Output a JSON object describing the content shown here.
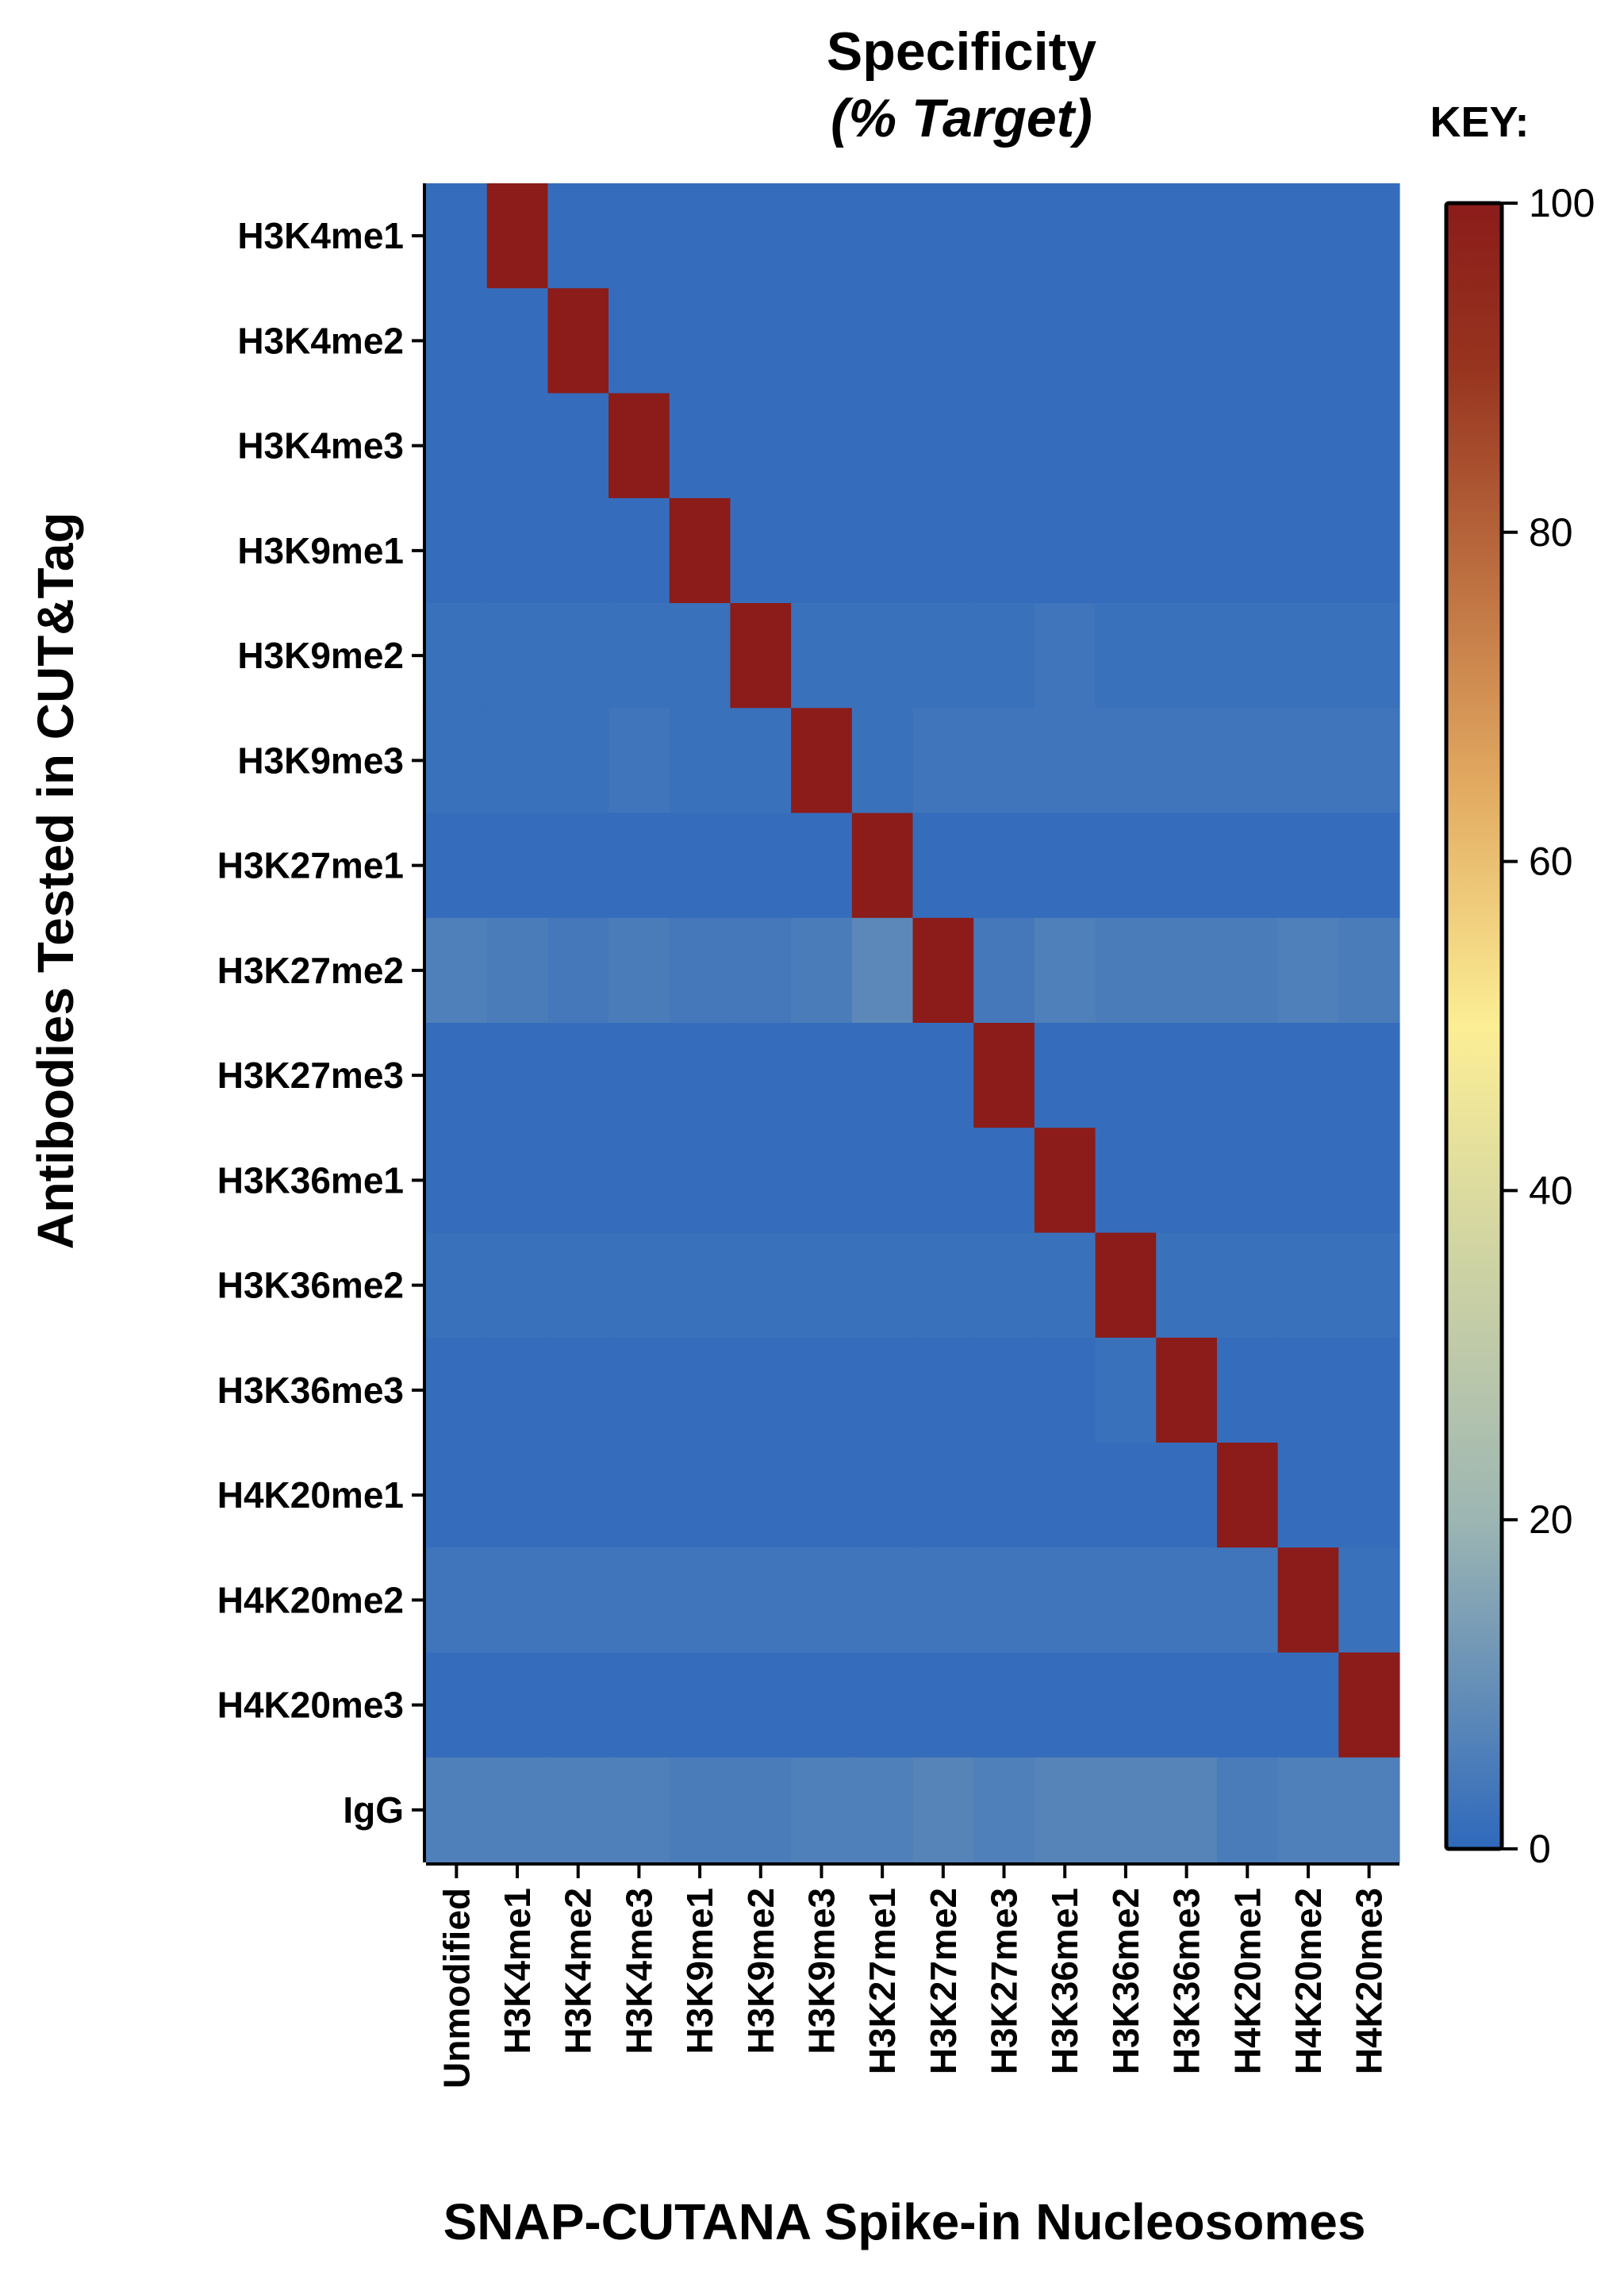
{
  "chart_data": {
    "type": "heatmap",
    "title": "Specificity",
    "subtitle": "(% Target)",
    "key_label": "KEY:",
    "xlabel": "SNAP-CUTANA Spike-in Nucleosomes",
    "ylabel": "Antibodies Tested in CUT&Tag",
    "value_range": [
      0,
      100
    ],
    "colorbar": {
      "ticks": [
        0,
        20,
        40,
        60,
        80,
        100
      ],
      "colors": [
        "#2f69bc",
        "#9db6b3",
        "#fcee95",
        "#e1a860",
        "#97341f",
        "#8b1c1a"
      ],
      "stops": [
        0,
        20,
        50,
        65,
        90,
        100
      ]
    },
    "columns": [
      "Unmodified",
      "H3K4me1",
      "H3K4me2",
      "H3K4me3",
      "H3K9me1",
      "H3K9me2",
      "H3K9me3",
      "H3K27me1",
      "H3K27me2",
      "H3K27me3",
      "H3K36me1",
      "H3K36me2",
      "H3K36me3",
      "H4K20me1",
      "H4K20me2",
      "H4K20me3"
    ],
    "rows": [
      "H3K4me1",
      "H3K4me2",
      "H3K4me3",
      "H3K9me1",
      "H3K9me2",
      "H3K9me3",
      "H3K27me1",
      "H3K27me2",
      "H3K27me3",
      "H3K36me1",
      "H3K36me2",
      "H3K36me3",
      "H4K20me1",
      "H4K20me2",
      "H4K20me3",
      "IgG"
    ],
    "values": [
      [
        1,
        100,
        1,
        1,
        1,
        1,
        1,
        1,
        1,
        1,
        1,
        1,
        1,
        1,
        1,
        1
      ],
      [
        1,
        1,
        100,
        1,
        1,
        1,
        1,
        1,
        1,
        1,
        1,
        1,
        1,
        1,
        1,
        1
      ],
      [
        1,
        1,
        1,
        100,
        1,
        1,
        1,
        1,
        1,
        1,
        1,
        1,
        1,
        1,
        1,
        1
      ],
      [
        1,
        1,
        1,
        1,
        100,
        1,
        1,
        1,
        1,
        1,
        1,
        1,
        1,
        1,
        1,
        1
      ],
      [
        2,
        2,
        2,
        2,
        2,
        100,
        2,
        2,
        2,
        2,
        3,
        2,
        2,
        2,
        2,
        2
      ],
      [
        2,
        2,
        2,
        3,
        2,
        2,
        100,
        2,
        3,
        3,
        3,
        3,
        3,
        3,
        3,
        3
      ],
      [
        1,
        1,
        1,
        1,
        1,
        1,
        1,
        100,
        1,
        1,
        1,
        1,
        1,
        1,
        1,
        1
      ],
      [
        6,
        5,
        4,
        5,
        4,
        4,
        5,
        8,
        100,
        4,
        6,
        5,
        5,
        5,
        6,
        5
      ],
      [
        1,
        1,
        1,
        1,
        1,
        1,
        1,
        1,
        1,
        100,
        1,
        1,
        1,
        1,
        1,
        1
      ],
      [
        1,
        1,
        1,
        1,
        1,
        1,
        1,
        1,
        1,
        1,
        100,
        1,
        1,
        1,
        1,
        1
      ],
      [
        2,
        2,
        2,
        2,
        2,
        2,
        2,
        2,
        2,
        2,
        2,
        100,
        2,
        2,
        2,
        2
      ],
      [
        1,
        1,
        1,
        1,
        1,
        1,
        1,
        1,
        1,
        1,
        1,
        2,
        100,
        1,
        1,
        1
      ],
      [
        1,
        1,
        1,
        1,
        1,
        1,
        1,
        1,
        1,
        1,
        1,
        1,
        1,
        100,
        1,
        1
      ],
      [
        3,
        3,
        3,
        3,
        3,
        3,
        3,
        3,
        3,
        3,
        3,
        3,
        3,
        3,
        100,
        2
      ],
      [
        1,
        1,
        1,
        1,
        1,
        1,
        1,
        1,
        1,
        1,
        1,
        1,
        1,
        1,
        1,
        100
      ],
      [
        6,
        6,
        6,
        6,
        5,
        5,
        6,
        6,
        7,
        6,
        7,
        7,
        7,
        5,
        6,
        6
      ]
    ]
  }
}
